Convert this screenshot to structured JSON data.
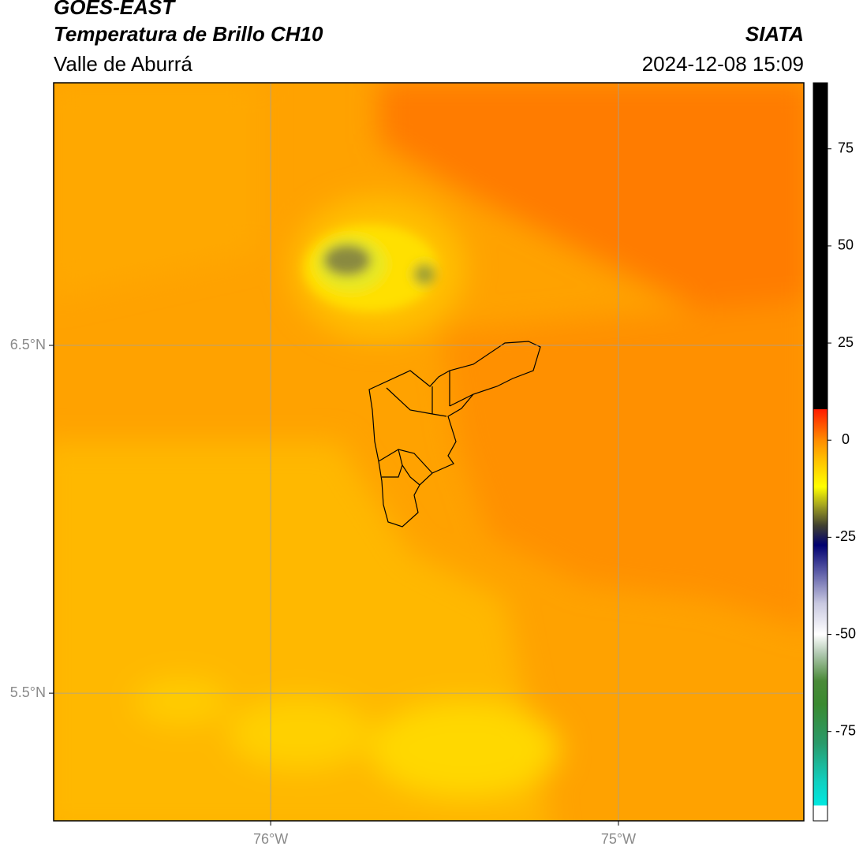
{
  "header": {
    "title": "GOES-EAST",
    "subtitle": "Temperatura de Brillo CH10",
    "source": "SIATA",
    "region": "Valle de Aburrá",
    "timestamp": "2024-12-08 15:09"
  },
  "map": {
    "type": "map",
    "xlim": [
      -76.624,
      -74.467
    ],
    "ylim": [
      5.133,
      7.255
    ],
    "xticks": [
      {
        "value": -76,
        "label": "76°W"
      },
      {
        "value": -75,
        "label": "75°W"
      }
    ],
    "yticks": [
      {
        "value": 6.5,
        "label": "6.5°N"
      },
      {
        "value": 5.5,
        "label": "5.5°N"
      }
    ],
    "grid": true
  },
  "colorbar": {
    "lim": [
      -98,
      92
    ],
    "ticks": [
      75,
      50,
      25,
      0,
      -25,
      -50,
      -75
    ],
    "stops": [
      {
        "value": -98,
        "color": "#ffffff"
      },
      {
        "value": -94,
        "color": "#ffffff"
      },
      {
        "value": -94,
        "color": "#00e8e0"
      },
      {
        "value": -88,
        "color": "#10d0c0"
      },
      {
        "value": -78,
        "color": "#2a9a6a"
      },
      {
        "value": -68,
        "color": "#3a8a30"
      },
      {
        "value": -62,
        "color": "#4a8a38"
      },
      {
        "value": -55,
        "color": "#b0c8b0"
      },
      {
        "value": -50,
        "color": "#ffffff"
      },
      {
        "value": -42,
        "color": "#c8c8e0"
      },
      {
        "value": -33,
        "color": "#5050a0"
      },
      {
        "value": -27,
        "color": "#000070"
      },
      {
        "value": -22,
        "color": "#404030"
      },
      {
        "value": -17,
        "color": "#a0a020"
      },
      {
        "value": -12,
        "color": "#ffff00"
      },
      {
        "value": -5,
        "color": "#ffc000"
      },
      {
        "value": 0,
        "color": "#ff8c00"
      },
      {
        "value": 8,
        "color": "#ff1a00"
      },
      {
        "value": 8,
        "color": "#000000"
      },
      {
        "value": 92,
        "color": "#000000"
      }
    ]
  }
}
